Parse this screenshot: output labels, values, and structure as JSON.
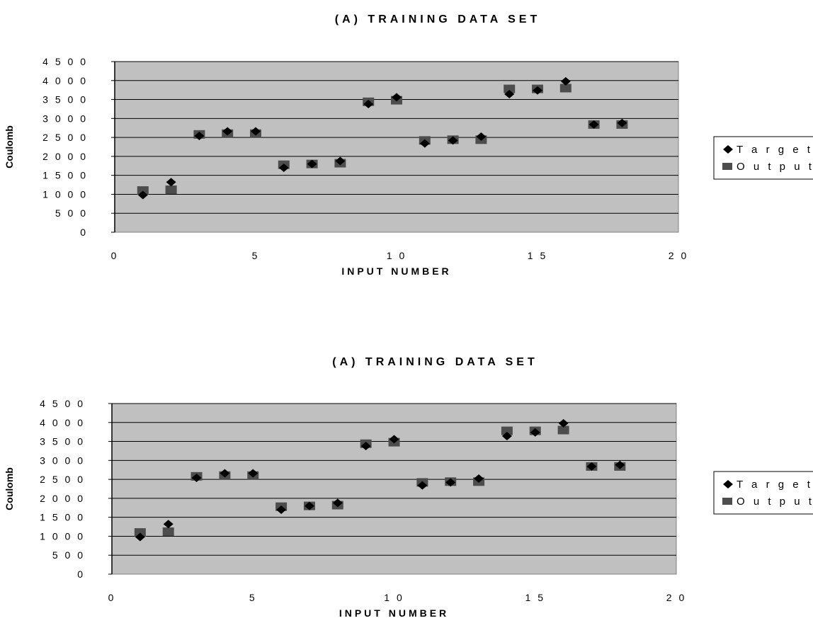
{
  "chart_data": [
    {
      "type": "scatter",
      "title": "(A) TRAINING DATA SET",
      "xlabel": "INPUT NUMBER",
      "ylabel": "Coulomb",
      "xlim": [
        0,
        20
      ],
      "ylim": [
        0,
        4500
      ],
      "xticks": [
        0,
        5,
        10,
        15,
        20
      ],
      "yticks": [
        0,
        500,
        1000,
        1500,
        2000,
        2500,
        3000,
        3500,
        4000,
        4500
      ],
      "grid": true,
      "legend_position": "right",
      "background_color": "#c0c0c0",
      "series": [
        {
          "name": "Target",
          "marker": "diamond",
          "color": "#000000",
          "x": [
            1,
            2,
            3,
            4,
            5,
            6,
            7,
            8,
            9,
            10,
            11,
            12,
            13,
            14,
            15,
            16,
            17,
            18
          ],
          "y": [
            980,
            1320,
            2540,
            2660,
            2660,
            1700,
            1800,
            1880,
            3380,
            3560,
            2340,
            2420,
            2520,
            3640,
            3740,
            3980,
            2840,
            2880
          ]
        },
        {
          "name": "Output",
          "marker": "square",
          "color": "#4d4d4d",
          "x": [
            1,
            2,
            3,
            4,
            5,
            6,
            7,
            8,
            9,
            10,
            11,
            12,
            13,
            14,
            15,
            16,
            17,
            18
          ],
          "y": [
            1100,
            1120,
            2580,
            2600,
            2600,
            1780,
            1800,
            1820,
            3440,
            3480,
            2420,
            2440,
            2440,
            3780,
            3780,
            3800,
            2840,
            2840
          ]
        }
      ]
    },
    {
      "type": "scatter",
      "title": "(A) TRAINING DATA SET",
      "xlabel": "INPUT NUMBER",
      "ylabel": "Coulomb",
      "xlim": [
        0,
        20
      ],
      "ylim": [
        0,
        4500
      ],
      "xticks": [
        0,
        5,
        10,
        15,
        20
      ],
      "yticks": [
        0,
        500,
        1000,
        1500,
        2000,
        2500,
        3000,
        3500,
        4000,
        4500
      ],
      "grid": true,
      "legend_position": "right",
      "background_color": "#c0c0c0",
      "series": [
        {
          "name": "Target",
          "marker": "diamond",
          "color": "#000000",
          "x": [
            1,
            2,
            3,
            4,
            5,
            6,
            7,
            8,
            9,
            10,
            11,
            12,
            13,
            14,
            15,
            16,
            17,
            18
          ],
          "y": [
            980,
            1320,
            2540,
            2660,
            2660,
            1700,
            1800,
            1880,
            3380,
            3560,
            2340,
            2420,
            2520,
            3640,
            3740,
            3980,
            2840,
            2880
          ]
        },
        {
          "name": "Output",
          "marker": "square",
          "color": "#4d4d4d",
          "x": [
            1,
            2,
            3,
            4,
            5,
            6,
            7,
            8,
            9,
            10,
            11,
            12,
            13,
            14,
            15,
            16,
            17,
            18
          ],
          "y": [
            1100,
            1120,
            2580,
            2600,
            2600,
            1780,
            1800,
            1820,
            3440,
            3480,
            2420,
            2440,
            2440,
            3780,
            3780,
            3800,
            2840,
            2840
          ]
        }
      ]
    }
  ]
}
